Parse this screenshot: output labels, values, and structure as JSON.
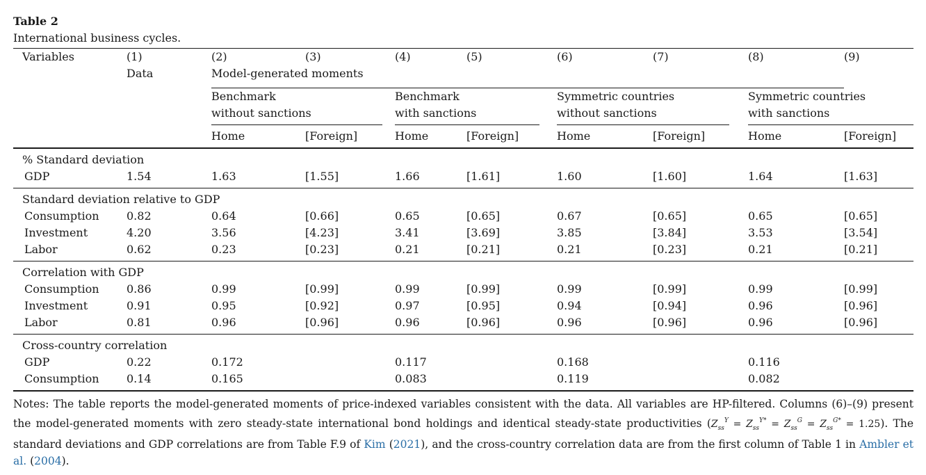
{
  "caption": {
    "label": "Table 2",
    "title": "International business cycles."
  },
  "header": {
    "variables": "Variables",
    "col_numbers": [
      "(1)",
      "(2)",
      "(3)",
      "(4)",
      "(5)",
      "(6)",
      "(7)",
      "(8)",
      "(9)"
    ],
    "data_label": "Data",
    "model_label": "Model-generated moments",
    "groups": [
      {
        "line1": "Benchmark",
        "line2": "without sanctions"
      },
      {
        "line1": "Benchmark",
        "line2": "with sanctions"
      },
      {
        "line1": "Symmetric countries",
        "line2": "without sanctions"
      },
      {
        "line1": "Symmetric countries",
        "line2": "with sanctions"
      }
    ],
    "home": "Home",
    "foreign": "[Foreign]"
  },
  "sections": [
    {
      "title": "% Standard deviation",
      "rows": [
        {
          "name": "GDP",
          "values": [
            "1.54",
            "1.63",
            "[1.55]",
            "1.66",
            "[1.61]",
            "1.60",
            "[1.60]",
            "1.64",
            "[1.63]"
          ]
        }
      ]
    },
    {
      "title": "Standard deviation relative to GDP",
      "rows": [
        {
          "name": "Consumption",
          "values": [
            "0.82",
            "0.64",
            "[0.66]",
            "0.65",
            "[0.65]",
            "0.67",
            "[0.65]",
            "0.65",
            "[0.65]"
          ]
        },
        {
          "name": "Investment",
          "values": [
            "4.20",
            "3.56",
            "[4.23]",
            "3.41",
            "[3.69]",
            "3.85",
            "[3.84]",
            "3.53",
            "[3.54]"
          ]
        },
        {
          "name": "Labor",
          "values": [
            "0.62",
            "0.23",
            "[0.23]",
            "0.21",
            "[0.21]",
            "0.21",
            "[0.23]",
            "0.21",
            "[0.21]"
          ]
        }
      ]
    },
    {
      "title": "Correlation with GDP",
      "rows": [
        {
          "name": "Consumption",
          "values": [
            "0.86",
            "0.99",
            "[0.99]",
            "0.99",
            "[0.99]",
            "0.99",
            "[0.99]",
            "0.99",
            "[0.99]"
          ]
        },
        {
          "name": "Investment",
          "values": [
            "0.91",
            "0.95",
            "[0.92]",
            "0.97",
            "[0.95]",
            "0.94",
            "[0.94]",
            "0.96",
            "[0.96]"
          ]
        },
        {
          "name": "Labor",
          "values": [
            "0.81",
            "0.96",
            "[0.96]",
            "0.96",
            "[0.96]",
            "0.96",
            "[0.96]",
            "0.96",
            "[0.96]"
          ]
        }
      ]
    },
    {
      "title": "Cross-country correlation",
      "rows": [
        {
          "name": "GDP",
          "values": [
            "0.22",
            "0.172",
            "",
            "0.117",
            "",
            "0.168",
            "",
            "0.116",
            ""
          ]
        },
        {
          "name": "Consumption",
          "values": [
            "0.14",
            "0.165",
            "",
            "0.083",
            "",
            "0.119",
            "",
            "0.082",
            ""
          ]
        }
      ]
    }
  ],
  "notes": {
    "part1": "Notes: The table reports the model-generated moments of price-indexed variables consistent with the data. All variables are HP-filtered. Columns (6)–(9) present the model-generated moments with zero steady-state international bond holdings and identical steady-state productivities (",
    "math_value": " = 1.25",
    "part2": "). The standard deviations and GDP correlations are from Table F.9 of ",
    "cite1_author": "Kim",
    "cite1_year": "2021",
    "part3": "), and the cross-country correlation data are from the first column of Table 1 in ",
    "cite2_author": "Ambler et al.",
    "cite2_year": "2004",
    "part4": ")."
  }
}
